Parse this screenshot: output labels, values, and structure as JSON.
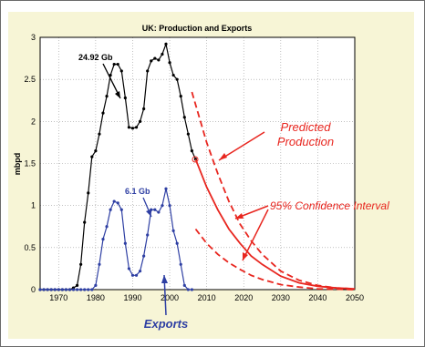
{
  "chart_data": {
    "type": "line",
    "title": "UK: Production and Exports",
    "ylabel": "mbpd",
    "xlabel": "",
    "xlim": [
      1965,
      2050
    ],
    "ylim": [
      0,
      3
    ],
    "x_ticks": [
      "1970",
      "1980",
      "1990",
      "2000",
      "2010",
      "2020",
      "2030",
      "2040",
      "2050"
    ],
    "y_ticks": [
      "0",
      "0.5",
      "1",
      "1.5",
      "2",
      "2.5",
      "3"
    ],
    "grid": true,
    "series": [
      {
        "name": "",
        "color": "#000000",
        "style": "solid-markers",
        "x": [
          1965,
          1966,
          1967,
          1968,
          1969,
          1970,
          1971,
          1972,
          1973,
          1974,
          1975,
          1976,
          1977,
          1978,
          1979,
          1980,
          1981,
          1982,
          1983,
          1984,
          1985,
          1986,
          1987,
          1988,
          1989,
          1990,
          1991,
          1992,
          1993,
          1994,
          1995,
          1996,
          1997,
          1998,
          1999,
          2000,
          2001,
          2002,
          2003,
          2004,
          2005,
          2006,
          2007
        ],
        "values": [
          0,
          0,
          0,
          0,
          0,
          0,
          0,
          0,
          0,
          0.02,
          0.05,
          0.3,
          0.8,
          1.15,
          1.58,
          1.65,
          1.85,
          2.1,
          2.3,
          2.55,
          2.68,
          2.68,
          2.6,
          2.28,
          1.93,
          1.92,
          1.93,
          2.0,
          2.15,
          2.6,
          2.72,
          2.75,
          2.73,
          2.8,
          2.92,
          2.7,
          2.55,
          2.5,
          2.3,
          2.05,
          1.85,
          1.65,
          1.55
        ]
      },
      {
        "name": "",
        "color": "#2e3fa3",
        "style": "solid-markers",
        "x": [
          1965,
          1966,
          1967,
          1968,
          1969,
          1970,
          1971,
          1972,
          1973,
          1974,
          1975,
          1976,
          1977,
          1978,
          1979,
          1980,
          1981,
          1982,
          1983,
          1984,
          1985,
          1986,
          1987,
          1988,
          1989,
          1990,
          1991,
          1992,
          1993,
          1994,
          1995,
          1996,
          1997,
          1998,
          1999,
          2000,
          2001,
          2002,
          2003,
          2004,
          2005,
          2006
        ],
        "values": [
          0,
          0,
          0,
          0,
          0,
          0,
          0,
          0,
          0,
          0,
          0,
          0,
          0,
          0,
          0,
          0.05,
          0.3,
          0.6,
          0.75,
          0.95,
          1.05,
          1.03,
          0.95,
          0.55,
          0.25,
          0.17,
          0.17,
          0.22,
          0.4,
          0.65,
          0.95,
          0.95,
          0.92,
          1.0,
          1.2,
          1.0,
          0.7,
          0.55,
          0.3,
          0.05,
          0,
          0
        ]
      },
      {
        "name": "",
        "color": "#e8261f",
        "style": "solid",
        "x": [
          2007,
          2010,
          2013,
          2016,
          2019,
          2022,
          2025,
          2030,
          2035,
          2040,
          2045,
          2050
        ],
        "values": [
          1.55,
          1.22,
          0.95,
          0.72,
          0.55,
          0.4,
          0.3,
          0.16,
          0.08,
          0.04,
          0.02,
          0.01
        ]
      },
      {
        "name": "",
        "color": "#e8261f",
        "style": "dashed",
        "x": [
          2006,
          2008,
          2010,
          2013,
          2016,
          2019,
          2022,
          2025,
          2030,
          2035,
          2040,
          2045,
          2050
        ],
        "values": [
          2.35,
          2.05,
          1.75,
          1.38,
          1.05,
          0.78,
          0.58,
          0.42,
          0.22,
          0.11,
          0.05,
          0.02,
          0.01
        ]
      },
      {
        "name": "",
        "color": "#e8261f",
        "style": "dashed",
        "x": [
          2007,
          2010,
          2013,
          2016,
          2019,
          2022,
          2025,
          2030,
          2035,
          2040,
          2045,
          2050
        ],
        "values": [
          0.72,
          0.55,
          0.42,
          0.32,
          0.24,
          0.17,
          0.12,
          0.06,
          0.03,
          0.01,
          0.005,
          0
        ]
      }
    ],
    "annotations": [
      {
        "text": "24.92 Gb",
        "color": "#000000"
      },
      {
        "text": "6.1 Gb",
        "color": "#2e3fa3"
      },
      {
        "text": "Predicted",
        "color": "#e8261f"
      },
      {
        "text": "Production",
        "color": "#e8261f"
      },
      {
        "text": "95% Confidence Interval",
        "color": "#e8261f"
      },
      {
        "text": "Exports",
        "color": "#2e3fa3"
      }
    ]
  }
}
